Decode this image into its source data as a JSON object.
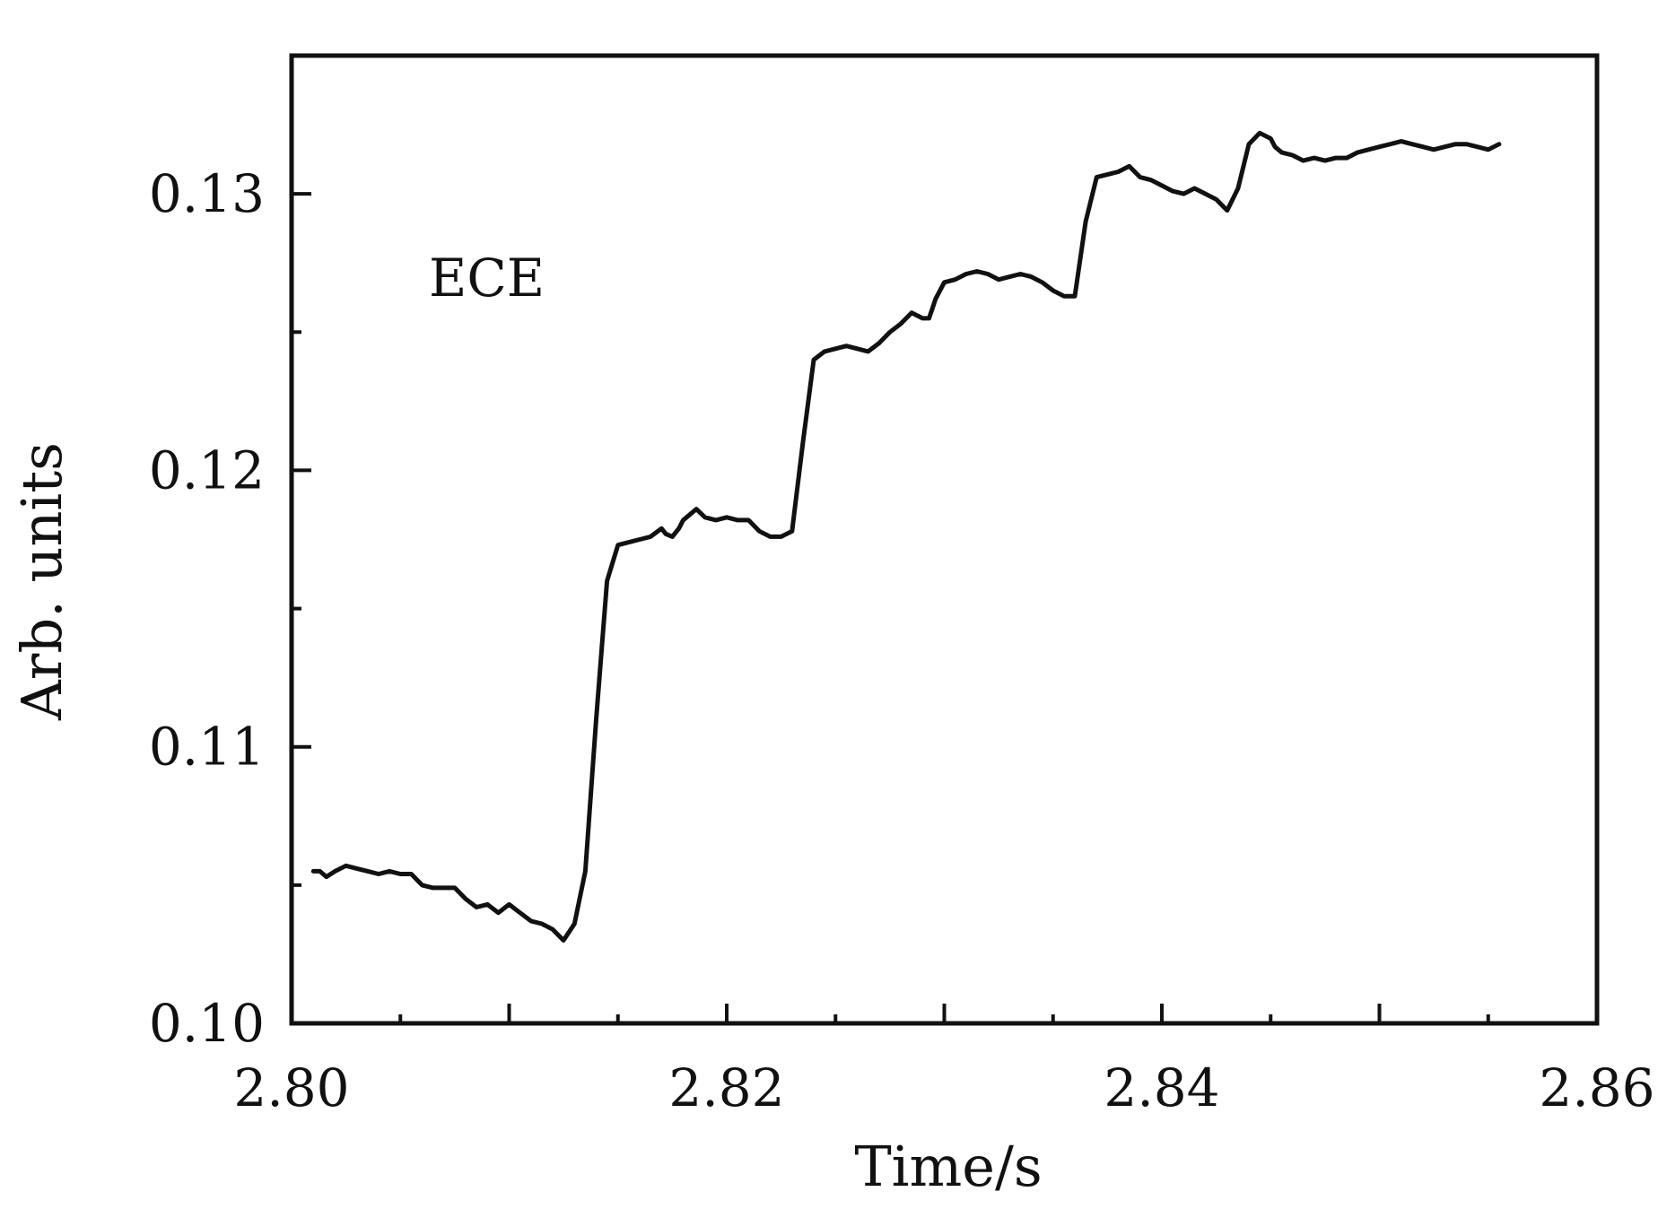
{
  "chart_data": {
    "type": "line",
    "title": "",
    "xlabel": "Time/s",
    "ylabel": "Arb. units",
    "xlim": [
      2.8,
      2.86
    ],
    "ylim": [
      0.1,
      0.135
    ],
    "xticks": [
      2.8,
      2.82,
      2.84,
      2.86
    ],
    "xtick_labels": [
      "2.80",
      "2.82",
      "2.84",
      "2.86"
    ],
    "x_minor_step": 0.005,
    "yticks": [
      0.1,
      0.11,
      0.12,
      0.13
    ],
    "ytick_labels": [
      "0.10",
      "0.11",
      "0.12",
      "0.13"
    ],
    "y_minor_step": 0.005,
    "grid": false,
    "annotation": "ECE",
    "line_color": "#111111",
    "series": [
      {
        "x": [
          2.801,
          2.8013,
          2.8016,
          2.802,
          2.8025,
          2.803,
          2.8035,
          2.804,
          2.8045,
          2.805,
          2.8055,
          2.806,
          2.8065,
          2.807,
          2.8075,
          2.808,
          2.8085,
          2.809,
          2.8095,
          2.81,
          2.8105,
          2.811,
          2.8115,
          2.812,
          2.8125,
          2.813,
          2.8135,
          2.814,
          2.8145,
          2.815,
          2.8155,
          2.816,
          2.8165,
          2.817,
          2.8172,
          2.8175,
          2.8178,
          2.818,
          2.8183,
          2.8186,
          2.819,
          2.8195,
          2.82,
          2.8205,
          2.821,
          2.8215,
          2.822,
          2.8225,
          2.823,
          2.8235,
          2.824,
          2.8245,
          2.825,
          2.8255,
          2.826,
          2.8265,
          2.827,
          2.8275,
          2.828,
          2.8285,
          2.829,
          2.8293,
          2.8296,
          2.83,
          2.8305,
          2.831,
          2.8315,
          2.832,
          2.8325,
          2.833,
          2.8335,
          2.834,
          2.8345,
          2.835,
          2.8355,
          2.836,
          2.8365,
          2.837,
          2.8375,
          2.838,
          2.8385,
          2.839,
          2.8395,
          2.84,
          2.8405,
          2.841,
          2.8415,
          2.842,
          2.8425,
          2.843,
          2.8435,
          2.844,
          2.8445,
          2.845,
          2.8452,
          2.8455,
          2.846,
          2.8465,
          2.847,
          2.8475,
          2.848,
          2.8485,
          2.849,
          2.8495,
          2.85,
          2.8505,
          2.851,
          2.8515,
          2.852,
          2.8525,
          2.853,
          2.8535,
          2.854,
          2.8545,
          2.855,
          2.8555
        ],
        "y": [
          0.1055,
          0.1055,
          0.1053,
          0.1055,
          0.1057,
          0.1056,
          0.1055,
          0.1054,
          0.1055,
          0.1054,
          0.1054,
          0.105,
          0.1049,
          0.1049,
          0.1049,
          0.1045,
          0.1042,
          0.1043,
          0.104,
          0.1043,
          0.104,
          0.1037,
          0.1036,
          0.1034,
          0.103,
          0.1036,
          0.1055,
          0.111,
          0.116,
          0.1173,
          0.1174,
          0.1175,
          0.1176,
          0.1179,
          0.1177,
          0.1176,
          0.1179,
          0.1182,
          0.1184,
          0.1186,
          0.1183,
          0.1182,
          0.1183,
          0.1182,
          0.1182,
          0.1178,
          0.1176,
          0.1176,
          0.1178,
          0.121,
          0.124,
          0.1243,
          0.1244,
          0.1245,
          0.1244,
          0.1243,
          0.1246,
          0.125,
          0.1253,
          0.1257,
          0.1255,
          0.1255,
          0.1262,
          0.1268,
          0.1269,
          0.1271,
          0.1272,
          0.1271,
          0.1269,
          0.127,
          0.1271,
          0.127,
          0.1268,
          0.1265,
          0.1263,
          0.1263,
          0.129,
          0.1306,
          0.1307,
          0.1308,
          0.131,
          0.1306,
          0.1305,
          0.1303,
          0.1301,
          0.13,
          0.1302,
          0.13,
          0.1298,
          0.1294,
          0.1302,
          0.1318,
          0.1322,
          0.132,
          0.1317,
          0.1315,
          0.1314,
          0.1312,
          0.1313,
          0.1312,
          0.1313,
          0.1313,
          0.1315,
          0.1316,
          0.1317,
          0.1318,
          0.1319,
          0.1318,
          0.1317,
          0.1316,
          0.1317,
          0.1318,
          0.1318,
          0.1317,
          0.1316,
          0.1318
        ]
      }
    ]
  }
}
